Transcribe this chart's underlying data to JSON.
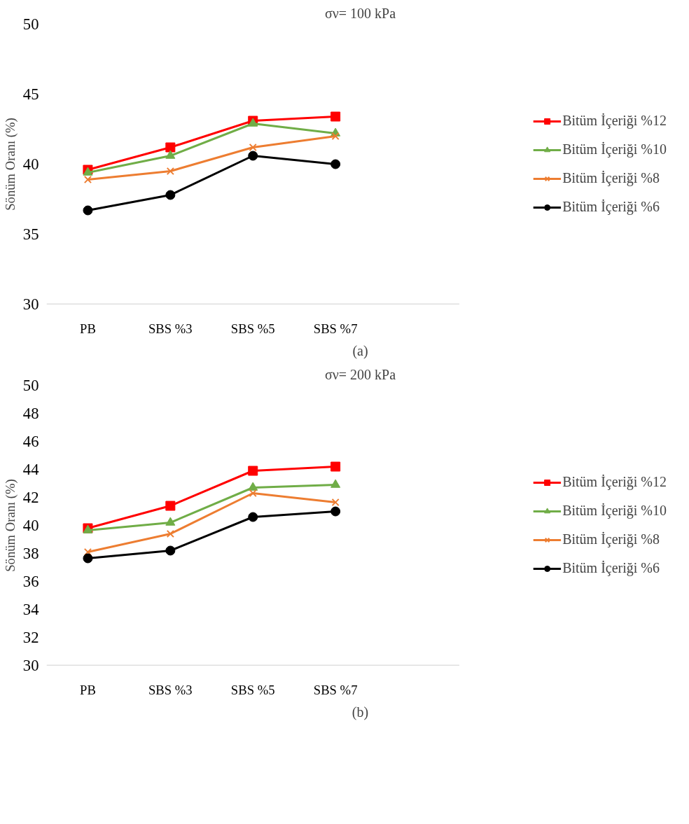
{
  "chart_data": [
    {
      "type": "line",
      "title": "σν= 100 kPa",
      "ylabel": "Sönüm Oranı (%)",
      "annotations": [
        "(a)"
      ],
      "categories": [
        "PB",
        "SBS %3",
        "SBS %5",
        "SBS %7",
        null
      ],
      "ylim": [
        30,
        50
      ],
      "yticks": [
        30,
        35,
        40,
        45,
        50
      ],
      "grid": false,
      "legend": "right",
      "series": [
        {
          "name": "Bitüm İçeriği %12",
          "color": "#ff0000",
          "marker": "square",
          "values": [
            39.6,
            41.2,
            43.1,
            43.4,
            null
          ]
        },
        {
          "name": "Bitüm İçeriği %10",
          "color": "#70ad47",
          "marker": "triangle",
          "values": [
            39.4,
            40.6,
            42.9,
            42.2,
            null
          ]
        },
        {
          "name": "Bitüm İçeriği %8",
          "color": "#ed7d31",
          "marker": "cross",
          "values": [
            38.9,
            39.5,
            41.2,
            42.0,
            null
          ]
        },
        {
          "name": "Bitüm İçeriği %6",
          "color": "#000000",
          "marker": "circle",
          "values": [
            36.7,
            37.8,
            40.6,
            40.0,
            null
          ]
        }
      ]
    },
    {
      "type": "line",
      "title": "σν= 200 kPa",
      "ylabel": "Sönüm Oranı (%)",
      "annotations": [
        "(b)"
      ],
      "categories": [
        "PB",
        "SBS %3",
        "SBS %5",
        "SBS %7",
        null
      ],
      "ylim": [
        30,
        50
      ],
      "yticks": [
        30,
        32,
        34,
        36,
        38,
        40,
        42,
        44,
        46,
        48,
        50
      ],
      "grid": false,
      "legend": "right",
      "series": [
        {
          "name": "Bitüm İçeriği %12",
          "color": "#ff0000",
          "marker": "square",
          "values": [
            39.8,
            41.4,
            43.9,
            44.2,
            null
          ]
        },
        {
          "name": "Bitüm İçeriği %10",
          "color": "#70ad47",
          "marker": "triangle",
          "values": [
            39.65,
            40.2,
            42.7,
            42.9,
            null
          ]
        },
        {
          "name": "Bitüm İçeriği %8",
          "color": "#ed7d31",
          "marker": "cross",
          "values": [
            38.1,
            39.4,
            42.3,
            41.65,
            null
          ]
        },
        {
          "name": "Bitüm İçeriği %6",
          "color": "#000000",
          "marker": "circle",
          "values": [
            37.65,
            38.2,
            40.6,
            41.0,
            null
          ]
        }
      ]
    }
  ]
}
